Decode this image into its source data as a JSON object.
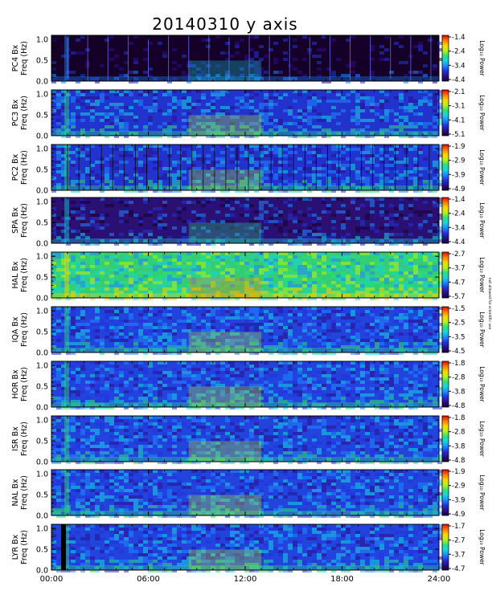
{
  "chart_data": {
    "type": "heatmap",
    "title": "20140310 y axis",
    "x_ticks": [
      "00:00",
      "06:00",
      "12:00",
      "18:00",
      "24:00"
    ],
    "xlim_hours": [
      0,
      24
    ],
    "y_ticks": [
      "0.0",
      "0.5",
      "1.0"
    ],
    "ylim_hz": [
      0,
      1.1
    ],
    "ylabel_line2": "Freq (Hz)",
    "colorbar_label": "Log₁₀ Power",
    "colorbar_colors": [
      "#1a0033",
      "#2b0f8a",
      "#2233dd",
      "#1e88ff",
      "#15d6e0",
      "#2ee07a",
      "#b8f21a",
      "#ffd400",
      "#ff7a00",
      "#e50000"
    ],
    "note_text": "not allowed for scientific use",
    "panels": [
      {
        "station": "PC4 Bx",
        "cb_ticks": [
          "-1.4",
          "-2.4",
          "-3.4",
          "-4.4"
        ]
      },
      {
        "station": "PC3 Bx",
        "cb_ticks": [
          "-2.1",
          "-3.1",
          "-4.1",
          "-5.1"
        ]
      },
      {
        "station": "PC2 Bx",
        "cb_ticks": [
          "-1.9",
          "-2.9",
          "-3.9",
          "-4.9"
        ]
      },
      {
        "station": "SPA Bx",
        "cb_ticks": [
          "-1.4",
          "-2.4",
          "-3.4",
          "-4.4"
        ]
      },
      {
        "station": "HAL Bx",
        "cb_ticks": [
          "-2.7",
          "-3.7",
          "-4.7",
          "-5.7"
        ]
      },
      {
        "station": "IQA Bx",
        "cb_ticks": [
          "-1.5",
          "-2.5",
          "-3.5",
          "-4.5"
        ]
      },
      {
        "station": "HOR Bx",
        "cb_ticks": [
          "-1.8",
          "-2.8",
          "-3.8",
          "-4.8"
        ]
      },
      {
        "station": "ISR Bx",
        "cb_ticks": [
          "-1.8",
          "-2.8",
          "-3.8",
          "-4.8"
        ]
      },
      {
        "station": "NAL Bx",
        "cb_ticks": [
          "-1.9",
          "-2.9",
          "-3.9",
          "-4.9"
        ]
      },
      {
        "station": "LYR Bx",
        "cb_ticks": [
          "-1.7",
          "-2.7",
          "-3.7",
          "-4.7"
        ]
      }
    ]
  }
}
